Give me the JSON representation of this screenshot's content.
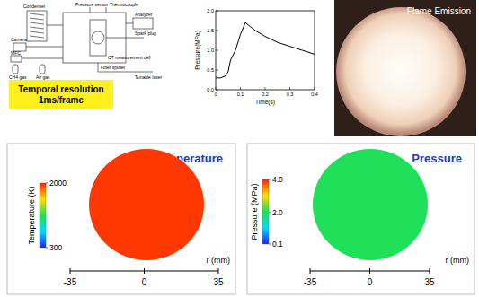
{
  "schematic": {
    "labels": [
      "Condenser",
      "Pressure sensor",
      "Thermocouple",
      "Analyzer",
      "Spark plug",
      "Camera",
      "MFC",
      "CH4 gas",
      "Air gas",
      "CT measurement cell",
      "Fiber splitter",
      "Tunable laser"
    ]
  },
  "note_box": {
    "lines": [
      "Temporal resolution",
      "1ms/frame"
    ]
  },
  "chart_data": {
    "type": "line",
    "x_label": "Time(s)",
    "y_label": "Pressure(MPa)",
    "x": [
      0,
      0.02,
      0.04,
      0.05,
      0.06,
      0.08,
      0.1,
      0.12,
      0.14,
      0.16,
      0.2,
      0.25,
      0.3,
      0.35,
      0.4
    ],
    "values": [
      0.3,
      0.3,
      0.35,
      0.45,
      0.75,
      1.0,
      1.4,
      1.7,
      1.6,
      1.5,
      1.35,
      1.2,
      1.1,
      1.0,
      0.9
    ],
    "color": "#000000",
    "xlim": [
      0,
      0.4
    ],
    "ylim": [
      0,
      2
    ],
    "xticks": [
      0,
      0.1,
      0.2,
      0.3,
      0.4
    ],
    "yticks": [
      {
        "value": 0,
        "label": "0.0"
      },
      0.5,
      {
        "value": 1,
        "label": "1.0"
      },
      1.5,
      {
        "value": 2,
        "label": "2.0"
      }
    ]
  },
  "photo": {
    "label": "Flame Emission"
  },
  "temperature_map": {
    "title": "Temperature",
    "colorbar_label": "Temperature (K)",
    "colorbar_range": [
      300,
      2000
    ],
    "colorbar_ticks": [
      2000,
      300
    ],
    "field_value": 1950,
    "axis_label": "r (mm)",
    "rlim": [
      -35,
      35
    ],
    "rticks": [
      -35,
      0,
      35
    ]
  },
  "pressure_map": {
    "title": "Pressure",
    "colorbar_label": "Pressure (MPa)",
    "colorbar_range": [
      0.1,
      4.0
    ],
    "colorbar_ticks": [
      {
        "value": 4,
        "label": "4.0"
      },
      {
        "value": 2,
        "label": "2.0"
      },
      0.1
    ],
    "field_value": 2.0,
    "axis_label": "r (mm)",
    "rlim": [
      -35,
      35
    ],
    "rticks": [
      -35,
      0,
      35
    ]
  }
}
